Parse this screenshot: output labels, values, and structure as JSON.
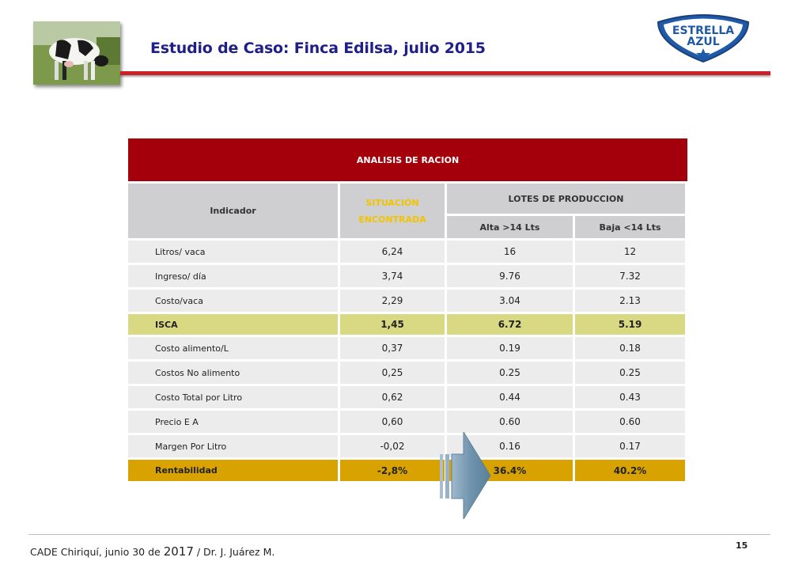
{
  "header": {
    "title": "Estudio de Caso: Finca Edilsa, julio 2015",
    "logo_line1": "ESTRELLA",
    "logo_line2": "AZUL"
  },
  "table": {
    "title": "ANALISIS DE RACION",
    "col_indicador": "Indicador",
    "col_situacion_1": "SITUACIÓN",
    "col_situacion_2": "ENCONTRADA",
    "col_lotes": "LOTES DE PRODUCCION",
    "col_alta": "Alta >14 Lts",
    "col_baja": "Baja <14 Lts",
    "rows": [
      {
        "label": "Litros/ vaca",
        "situacion": "6,24",
        "alta": "16",
        "baja": "12"
      },
      {
        "label": "Ingreso/ día",
        "situacion": "3,74",
        "alta": "9.76",
        "baja": "7.32"
      },
      {
        "label": "Costo/vaca",
        "situacion": "2,29",
        "alta": "3.04",
        "baja": "2.13"
      },
      {
        "label": "ISCA",
        "situacion": "1,45",
        "alta": "6.72",
        "baja": "5.19"
      },
      {
        "label": "Costo alimento/L",
        "situacion": "0,37",
        "alta": "0.19",
        "baja": "0.18"
      },
      {
        "label": "Costos No alimento",
        "situacion": "0,25",
        "alta": "0.25",
        "baja": "0.25"
      },
      {
        "label": "Costo Total por Litro",
        "situacion": "0,62",
        "alta": "0.44",
        "baja": "0.43"
      },
      {
        "label": "Precio E A",
        "situacion": "0,60",
        "alta": "0.60",
        "baja": "0.60"
      },
      {
        "label": "Margen Por Litro",
        "situacion": "-0,02",
        "alta": "0.16",
        "baja": "0.17"
      },
      {
        "label": "Rentabilidad",
        "situacion": "-2,8%",
        "alta": "36.4%",
        "baja": "40.2%"
      }
    ]
  },
  "footer": {
    "prefix": "CADE Chiriquí,  junio 30 de ",
    "year": "2017",
    "suffix": " / Dr. J. Juárez M.",
    "page_number": "15"
  },
  "colors": {
    "title_blue": "#1f1f8a",
    "rule_red": "#c8232a",
    "table_header_red": "#a3000b",
    "isca_highlight": "#d9d983",
    "rentabilidad_highlight": "#d8a300"
  }
}
